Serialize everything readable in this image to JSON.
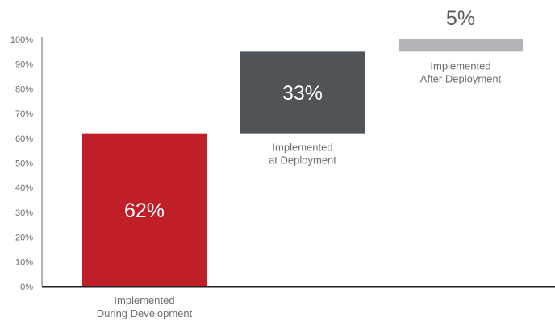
{
  "chart_data": {
    "type": "bar",
    "subtype": "waterfall",
    "title": "",
    "xlabel": "",
    "ylabel": "",
    "ylim": [
      0,
      100
    ],
    "yticks": [
      "0%",
      "10%",
      "20%",
      "30%",
      "40%",
      "50%",
      "60%",
      "70%",
      "80%",
      "90%",
      "100%"
    ],
    "grid": false,
    "legend": "none",
    "categories": [
      [
        "Implemented",
        "During Development"
      ],
      [
        "Implemented",
        "at Deployment"
      ],
      [
        "Implemented",
        "After Deployment"
      ]
    ],
    "values": [
      62,
      33,
      5
    ],
    "value_labels": [
      "62%",
      "33%",
      "5%"
    ],
    "colors": [
      "#c01f27",
      "#4e5457",
      "#b2b4b8"
    ]
  }
}
